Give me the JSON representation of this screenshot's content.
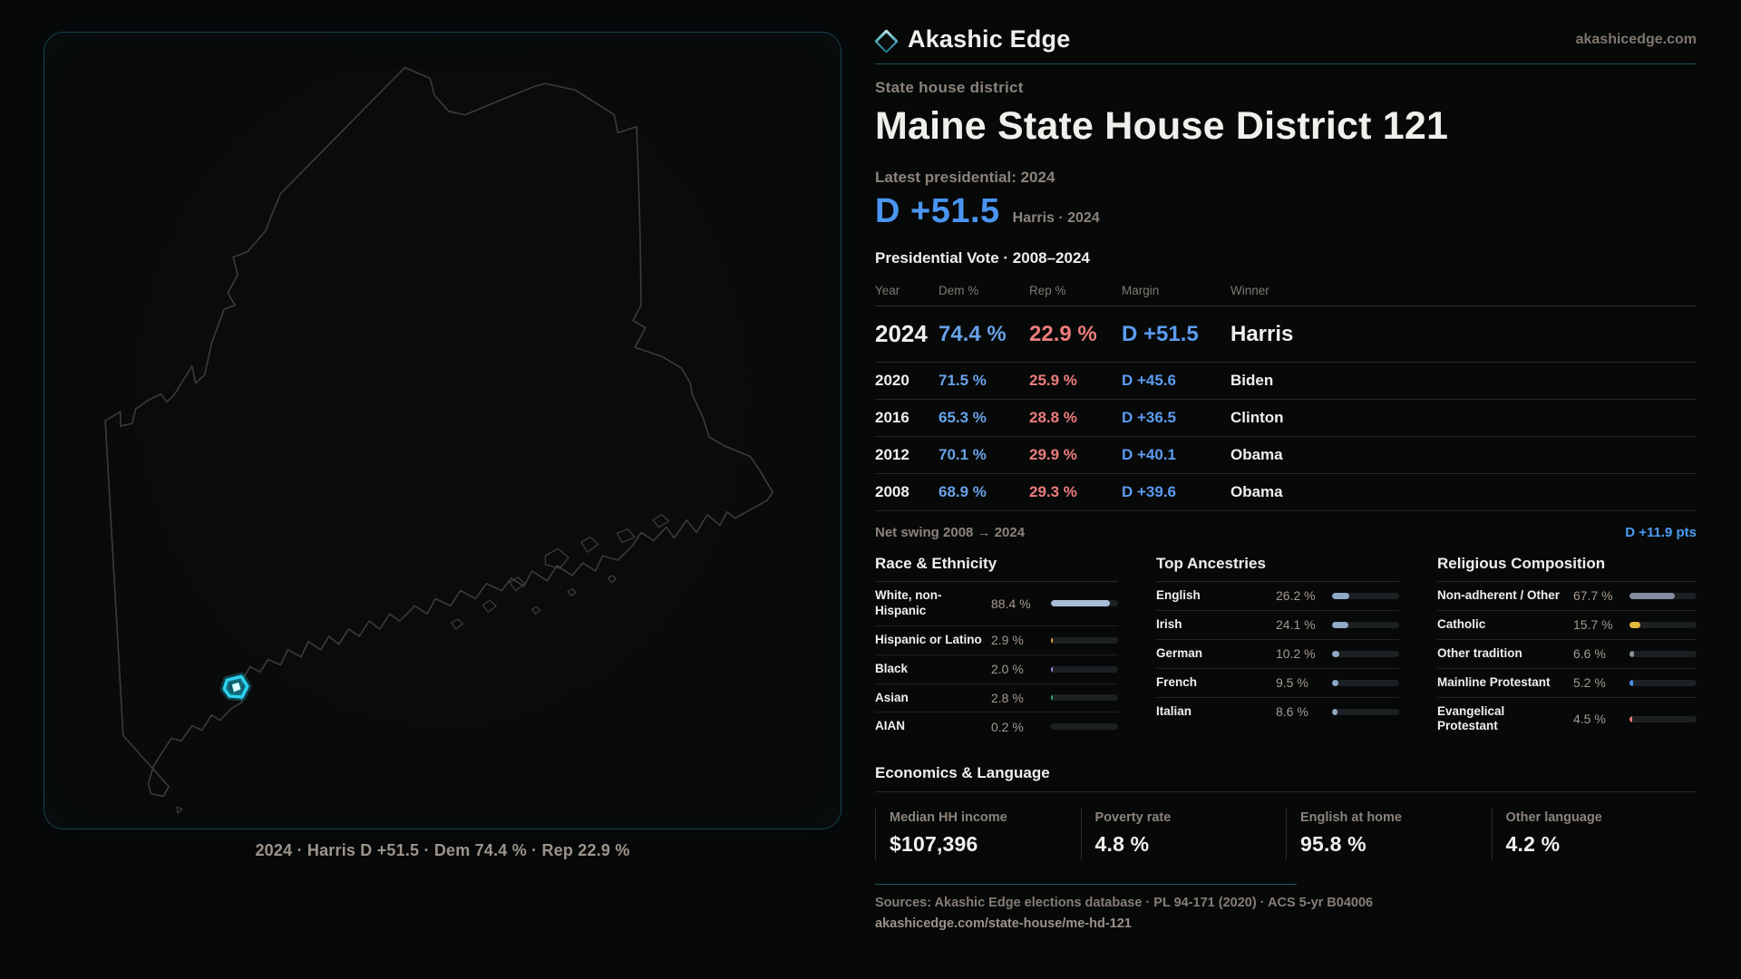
{
  "brand": {
    "name": "Akashic Edge",
    "site": "akashicedge.com",
    "accent": "#2cd3ee"
  },
  "header": {
    "kicker": "State house district",
    "title": "Maine State House District 121",
    "latest_label": "Latest presidential: 2024",
    "headline_margin": "D +51.5",
    "headline_note": "Harris · 2024"
  },
  "vote_table": {
    "title": "Presidential Vote · 2008–2024",
    "columns": [
      "Year",
      "Dem %",
      "Rep %",
      "Margin",
      "Winner"
    ],
    "rows": [
      {
        "year": "2024",
        "dem": "74.4 %",
        "rep": "22.9 %",
        "margin": "D +51.5",
        "winner": "Harris"
      },
      {
        "year": "2020",
        "dem": "71.5 %",
        "rep": "25.9 %",
        "margin": "D +45.6",
        "winner": "Biden"
      },
      {
        "year": "2016",
        "dem": "65.3 %",
        "rep": "28.8 %",
        "margin": "D +36.5",
        "winner": "Clinton"
      },
      {
        "year": "2012",
        "dem": "70.1 %",
        "rep": "29.9 %",
        "margin": "D +40.1",
        "winner": "Obama"
      },
      {
        "year": "2008",
        "dem": "68.9 %",
        "rep": "29.3 %",
        "margin": "D +39.6",
        "winner": "Obama"
      }
    ],
    "net_swing_label": "Net swing 2008 → 2024",
    "net_swing_value": "D +11.9 pts"
  },
  "race": {
    "title": "Race & Ethnicity",
    "rows": [
      {
        "label": "White, non-Hispanic",
        "value": "88.4 %",
        "pct": 88.4,
        "color": "#a9bdd6"
      },
      {
        "label": "Hispanic or Latino",
        "value": "2.9 %",
        "pct": 2.9,
        "color": "#eda33d"
      },
      {
        "label": "Black",
        "value": "2.0 %",
        "pct": 2.0,
        "color": "#9c8df2"
      },
      {
        "label": "Asian",
        "value": "2.8 %",
        "pct": 2.8,
        "color": "#31af7c"
      },
      {
        "label": "AIAN",
        "value": "0.2 %",
        "pct": 0.2,
        "color": "#8fa9c9"
      }
    ]
  },
  "ancestries": {
    "title": "Top Ancestries",
    "rows": [
      {
        "label": "English",
        "value": "26.2 %",
        "pct": 26.2,
        "color": "#8fa9c9"
      },
      {
        "label": "Irish",
        "value": "24.1 %",
        "pct": 24.1,
        "color": "#8fa9c9"
      },
      {
        "label": "German",
        "value": "10.2 %",
        "pct": 10.2,
        "color": "#8fa9c9"
      },
      {
        "label": "French",
        "value": "9.5 %",
        "pct": 9.5,
        "color": "#8fa9c9"
      },
      {
        "label": "Italian",
        "value": "8.6 %",
        "pct": 8.6,
        "color": "#8fa9c9"
      }
    ]
  },
  "religion": {
    "title": "Religious Composition",
    "rows": [
      {
        "label": "Non-adherent / Other",
        "value": "67.7 %",
        "pct": 67.7,
        "color": "#848ea0"
      },
      {
        "label": "Catholic",
        "value": "15.7 %",
        "pct": 15.7,
        "color": "#e3b93c"
      },
      {
        "label": "Other tradition",
        "value": "6.6 %",
        "pct": 6.6,
        "color": "#8a9099"
      },
      {
        "label": "Mainline Protestant",
        "value": "5.2 %",
        "pct": 5.2,
        "color": "#4a8fe8"
      },
      {
        "label": "Evangelical Protestant",
        "value": "4.5 %",
        "pct": 4.5,
        "color": "#e87878"
      }
    ]
  },
  "economics": {
    "title": "Economics & Language",
    "stats": [
      {
        "label": "Median HH income",
        "value": "$107,396"
      },
      {
        "label": "Poverty rate",
        "value": "4.8 %"
      },
      {
        "label": "English at home",
        "value": "95.8 %"
      },
      {
        "label": "Other language",
        "value": "4.2 %"
      }
    ]
  },
  "map": {
    "caption": "2024 · Harris D +51.5 · Dem 74.4 % · Rep 22.9 %"
  },
  "footer": {
    "sources": "Sources: Akashic Edge elections database · PL 94-171 (2020) · ACS 5-yr B04006",
    "permalink": "akashicedge.com/state-house/me-hd-121"
  }
}
